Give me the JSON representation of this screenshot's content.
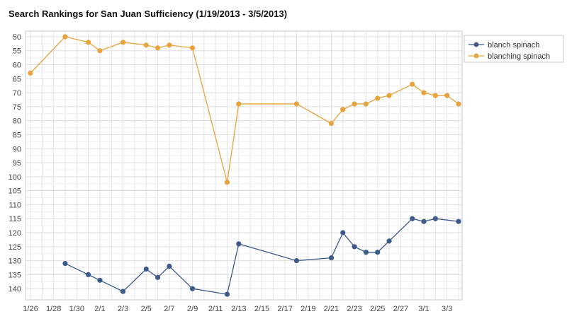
{
  "chart_data": {
    "type": "line",
    "title": "Search Rankings for San Juan Sufficiency (1/19/2013 - 3/5/2013)",
    "xlabel": "",
    "ylabel": "",
    "x_axis": {
      "start": "2013-01-26",
      "end": "2013-03-04",
      "tick_labels": [
        "1/26",
        "1/28",
        "1/30",
        "2/1",
        "2/3",
        "2/5",
        "2/7",
        "2/9",
        "2/11",
        "2/13",
        "2/15",
        "2/17",
        "2/19",
        "2/21",
        "2/23",
        "2/25",
        "2/27",
        "3/1",
        "3/3"
      ]
    },
    "y_axis": {
      "reversed": true,
      "ylim": [
        48,
        144
      ],
      "tick_labels": [
        50,
        55,
        60,
        65,
        70,
        75,
        80,
        85,
        90,
        95,
        100,
        105,
        110,
        115,
        120,
        125,
        130,
        135,
        140
      ]
    },
    "grid": true,
    "legend_placement": "top-right",
    "series": [
      {
        "name": "blanch spinach",
        "color": "#3d5a8a",
        "points": [
          {
            "x": "2013-01-29",
            "y": 131
          },
          {
            "x": "2013-01-31",
            "y": 135
          },
          {
            "x": "2013-02-01",
            "y": 137
          },
          {
            "x": "2013-02-03",
            "y": 141
          },
          {
            "x": "2013-02-05",
            "y": 133
          },
          {
            "x": "2013-02-06",
            "y": 136
          },
          {
            "x": "2013-02-07",
            "y": 132
          },
          {
            "x": "2013-02-09",
            "y": 140
          },
          {
            "x": "2013-02-12",
            "y": 142
          },
          {
            "x": "2013-02-13",
            "y": 124
          },
          {
            "x": "2013-02-18",
            "y": 130
          },
          {
            "x": "2013-02-21",
            "y": 129
          },
          {
            "x": "2013-02-22",
            "y": 120
          },
          {
            "x": "2013-02-23",
            "y": 125
          },
          {
            "x": "2013-02-24",
            "y": 127
          },
          {
            "x": "2013-02-25",
            "y": 127
          },
          {
            "x": "2013-02-26",
            "y": 123
          },
          {
            "x": "2013-02-28",
            "y": 115
          },
          {
            "x": "2013-03-01",
            "y": 116
          },
          {
            "x": "2013-03-02",
            "y": 115
          },
          {
            "x": "2013-03-04",
            "y": 116
          }
        ]
      },
      {
        "name": "blanching spinach",
        "color": "#e8a33d",
        "points": [
          {
            "x": "2013-01-26",
            "y": 63
          },
          {
            "x": "2013-01-29",
            "y": 50
          },
          {
            "x": "2013-01-31",
            "y": 52
          },
          {
            "x": "2013-02-01",
            "y": 55
          },
          {
            "x": "2013-02-03",
            "y": 52
          },
          {
            "x": "2013-02-05",
            "y": 53
          },
          {
            "x": "2013-02-06",
            "y": 54
          },
          {
            "x": "2013-02-07",
            "y": 53
          },
          {
            "x": "2013-02-09",
            "y": 54
          },
          {
            "x": "2013-02-12",
            "y": 102
          },
          {
            "x": "2013-02-13",
            "y": 74
          },
          {
            "x": "2013-02-18",
            "y": 74
          },
          {
            "x": "2013-02-21",
            "y": 81
          },
          {
            "x": "2013-02-22",
            "y": 76
          },
          {
            "x": "2013-02-23",
            "y": 74
          },
          {
            "x": "2013-02-24",
            "y": 74
          },
          {
            "x": "2013-02-25",
            "y": 72
          },
          {
            "x": "2013-02-26",
            "y": 71
          },
          {
            "x": "2013-02-28",
            "y": 67
          },
          {
            "x": "2013-03-01",
            "y": 70
          },
          {
            "x": "2013-03-02",
            "y": 71
          },
          {
            "x": "2013-03-03",
            "y": 71
          },
          {
            "x": "2013-03-04",
            "y": 74
          }
        ]
      }
    ]
  }
}
